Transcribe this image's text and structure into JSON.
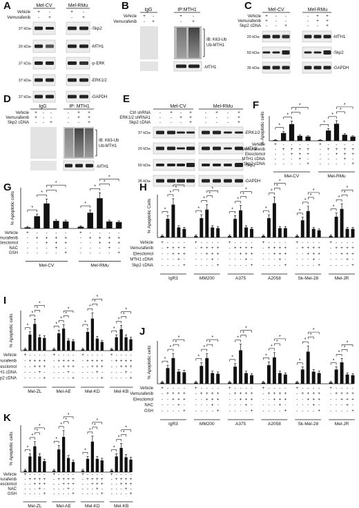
{
  "panels": {
    "A": {
      "letter": "A",
      "groups": [
        "Mel-CV",
        "Mel-RMu"
      ],
      "row_labels": [
        "Vehicle",
        "Vemurafenib"
      ],
      "signs": [
        "+",
        "-",
        "+",
        "-",
        "-",
        "+",
        "-",
        "+"
      ],
      "bands": [
        "-Skp2",
        "-MTH1",
        "-p-ERK",
        "-ERK1/2",
        "-GAPDH"
      ],
      "markers": [
        "37 kDa-",
        "20 kDa-",
        "37 kDa-",
        "37 kDa-",
        "37 kDa-"
      ]
    },
    "B": {
      "letter": "B",
      "groups": [
        "IgG",
        "IP:MTH1"
      ],
      "row_labels": [
        "Vehicle",
        "Vemurafenib"
      ],
      "signs": [
        "+",
        "-",
        "+",
        "-",
        "-",
        "+",
        "-",
        "+"
      ],
      "ib_label": "IB: K63-Ub",
      "ib_label2": "Ub-MTH1",
      "bottom_band": "-MTH1"
    },
    "C": {
      "letter": "C",
      "groups": [
        "Mel-CV",
        "Mel-RMu"
      ],
      "row_labels": [
        "Vehicle",
        "Vemurafenib",
        "Skp2 cDNA"
      ],
      "signs": [
        "+",
        "-",
        "-",
        "-",
        "+",
        "+",
        "+",
        "-",
        "-",
        "-",
        "+",
        "+",
        "-",
        "-",
        "+",
        "-",
        "-",
        "+"
      ],
      "bands": [
        "-MTH1",
        "-Skp2",
        "-GAPDH"
      ],
      "markers": [
        "20 kDa-",
        "50 kDa-",
        "35 kDa-"
      ]
    },
    "D": {
      "letter": "D",
      "groups": [
        "IgG",
        "IP: MTH1"
      ],
      "row_labels": [
        "Vehicle",
        "Vemurafenib",
        "Skp2 cDNA"
      ],
      "signs": [
        "+",
        "-",
        "-",
        "-",
        "+",
        "+",
        "+",
        "-",
        "-",
        "-",
        "+",
        "+",
        "-",
        "-",
        "+",
        "-",
        "-",
        "+"
      ],
      "ib_label": "IB: K63-Ub",
      "ib_label2": "Ub-MTH1",
      "bottom_band": "-MTH1"
    },
    "E": {
      "letter": "E",
      "groups": [
        "Mel-CV",
        "Mel-RMu"
      ],
      "row_labels": [
        "Ctrl shRNA",
        "ERK1/2 shRNA1",
        "Skp2 cDNA"
      ],
      "signs": [
        "-",
        "+",
        "-",
        "+",
        "-",
        "+",
        "-",
        "+",
        "-",
        "-",
        "+",
        "+",
        "-",
        "-",
        "-",
        "+",
        "-",
        "-",
        "-",
        "+",
        "-",
        "-",
        "-",
        "+"
      ],
      "bands": [
        "-ERK1/2",
        "-MTH1",
        "-Skp2",
        "-GAPDH"
      ],
      "markers": [
        "37 kDa-",
        "20 kDa-",
        "50 kDa-",
        "35 kDa-"
      ]
    },
    "F": {
      "letter": "F",
      "ylabel": "% Apoptotic cells",
      "row_labels": [
        "Vehicle",
        "Vemurafenib",
        "Elesclomol",
        "MTH1 cDNA",
        "Skp2 cDNA"
      ],
      "groups": [
        "Mel-CV",
        "Mel-RMu"
      ]
    },
    "G": {
      "letter": "G",
      "ylabel": "% Apoptotic cells",
      "row_labels": [
        "Vehicle",
        "Vemurafenib",
        "Elesclomol",
        "NAC",
        "GSH"
      ],
      "groups": [
        "Mel-CV",
        "Mel-RMu"
      ]
    },
    "H": {
      "letter": "H",
      "ylabel": "% Apoptotic Cells",
      "row_labels": [
        "Vehicle",
        "Vemurafenib",
        "Elesclomol",
        "MTH1 cDNA",
        "Skp2 cDNA"
      ],
      "groups": [
        "IgR3",
        "MM200",
        "A375",
        "A2058",
        "Sk-Mel-28",
        "Mel-JR"
      ]
    },
    "I": {
      "letter": "I",
      "ylabel": "% Apoptotic cells",
      "row_labels": [
        "Vehicle",
        "Vemurafenib",
        "Elesclomol",
        "MTH1 cDNA",
        "Skp2 cDNA"
      ],
      "groups": [
        "Mel-ZL",
        "Mel-AE",
        "Mel-KD",
        "Mel-KB"
      ]
    },
    "J": {
      "letter": "J",
      "ylabel": "% Apoptotic cells",
      "row_labels": [
        "Vehicle",
        "Vemurafenib",
        "Elesclomol",
        "NAC",
        "GSH"
      ],
      "groups": [
        "IgR3",
        "MM200",
        "A375",
        "A2058",
        "Sk-Mel-28",
        "Mel-JR"
      ]
    },
    "K": {
      "letter": "K",
      "ylabel": "% Apoptotic cells",
      "row_labels": [
        "Vehicle",
        "Vemurafenib",
        "Elesclomol",
        "NAC",
        "GSH"
      ],
      "groups": [
        "Mel-ZL",
        "Mel-AE",
        "Mel-KD",
        "Mel-KB"
      ]
    }
  },
  "chart_data": [
    {
      "panel": "F",
      "type": "bar",
      "ylim": [
        0,
        70
      ],
      "grid": false,
      "series": [
        {
          "name": "",
          "values": [
            2,
            22,
            47,
            14,
            12,
            2,
            29,
            48,
            17,
            12
          ]
        }
      ],
      "group_sizes": [
        5,
        5
      ]
    },
    {
      "panel": "G",
      "type": "bar",
      "ylim": [
        0,
        70
      ],
      "grid": false,
      "series": [
        {
          "name": "",
          "values": [
            2,
            21,
            43,
            13,
            12,
            3,
            27,
            52,
            12,
            11
          ]
        }
      ],
      "group_sizes": [
        5,
        5
      ]
    },
    {
      "panel": "H",
      "type": "bar",
      "ylim": [
        0,
        60
      ],
      "grid": false,
      "series": [
        {
          "name": "",
          "values": [
            2,
            26,
            46,
            14,
            12,
            2,
            27,
            39,
            14,
            13,
            2,
            26,
            38,
            14,
            12,
            2,
            27,
            48,
            13,
            13,
            2,
            24,
            37,
            12,
            10,
            2,
            29,
            40,
            12,
            12
          ]
        }
      ],
      "group_sizes": [
        5,
        5,
        5,
        5,
        5,
        5
      ]
    },
    {
      "panel": "I",
      "type": "bar",
      "ylim": [
        0,
        60
      ],
      "grid": false,
      "series": [
        {
          "name": "",
          "values": [
            2,
            24,
            40,
            20,
            19,
            2,
            26,
            33,
            15,
            14,
            2,
            28,
            48,
            18,
            13,
            2,
            20,
            32,
            20,
            17
          ]
        }
      ],
      "group_sizes": [
        5,
        5,
        5,
        5
      ]
    },
    {
      "panel": "J",
      "type": "bar",
      "ylim": [
        0,
        60
      ],
      "grid": false,
      "series": [
        {
          "name": "",
          "values": [
            2,
            22,
            36,
            17,
            16,
            2,
            25,
            36,
            15,
            14,
            2,
            24,
            47,
            15,
            12,
            2,
            26,
            37,
            15,
            13,
            2,
            20,
            45,
            17,
            15,
            2,
            20,
            30,
            13,
            12
          ]
        }
      ],
      "group_sizes": [
        5,
        5,
        5,
        5,
        5,
        5
      ]
    },
    {
      "panel": "K",
      "type": "bar",
      "ylim": [
        0,
        60
      ],
      "grid": false,
      "series": [
        {
          "name": "",
          "values": [
            2,
            20,
            33,
            20,
            14,
            2,
            29,
            45,
            18,
            13,
            2,
            17,
            39,
            17,
            15,
            2,
            20,
            31,
            19,
            16
          ]
        }
      ],
      "group_sizes": [
        5,
        5,
        5,
        5
      ]
    }
  ]
}
